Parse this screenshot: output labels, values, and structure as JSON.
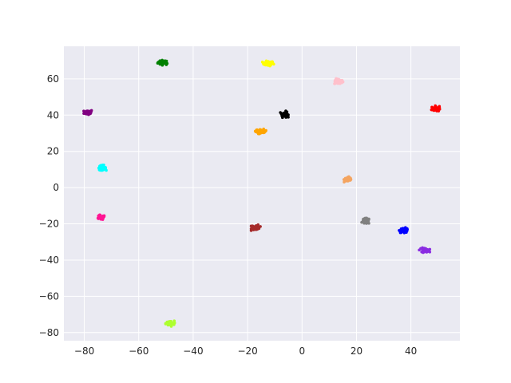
{
  "chart_data": {
    "type": "scatter",
    "title": "",
    "xlabel": "",
    "ylabel": "",
    "xlim": [
      -87.5,
      58
    ],
    "ylim": [
      -84.5,
      78
    ],
    "xticks": [
      -80,
      -60,
      -40,
      -20,
      0,
      20,
      40
    ],
    "yticks": [
      -80,
      -60,
      -40,
      -20,
      0,
      20,
      40,
      60
    ],
    "grid": true,
    "style": "seaborn-darkgrid",
    "background_color": "#eaeaf2",
    "grid_color": "#ffffff",
    "clusters": [
      {
        "color": "#008000",
        "center": [
          -51,
          69
        ],
        "spread": [
          1.8,
          1.2
        ],
        "n": 40
      },
      {
        "color": "#ffff00",
        "center": [
          -12.5,
          68.5
        ],
        "spread": [
          1.8,
          1.2
        ],
        "n": 40
      },
      {
        "color": "#ffc0cb",
        "center": [
          13.5,
          58.5
        ],
        "spread": [
          1.5,
          1.4
        ],
        "n": 40
      },
      {
        "color": "#800080",
        "center": [
          -78.5,
          41.5
        ],
        "spread": [
          1.4,
          1.3
        ],
        "n": 40
      },
      {
        "color": "#000000",
        "center": [
          -6.5,
          40.5
        ],
        "spread": [
          1.2,
          1.5
        ],
        "n": 40
      },
      {
        "color": "#ff0000",
        "center": [
          49,
          43.5
        ],
        "spread": [
          1.3,
          1.4
        ],
        "n": 40
      },
      {
        "color": "#ffa500",
        "center": [
          -15,
          31
        ],
        "spread": [
          1.8,
          1.1
        ],
        "n": 40
      },
      {
        "color": "#00ffff",
        "center": [
          -73.5,
          11
        ],
        "spread": [
          1.3,
          1.2
        ],
        "n": 40
      },
      {
        "color": "#f4a460",
        "center": [
          17,
          4.5
        ],
        "spread": [
          1.4,
          1.4
        ],
        "n": 40
      },
      {
        "color": "#ff1493",
        "center": [
          -74,
          -16.5
        ],
        "spread": [
          1.5,
          1.2
        ],
        "n": 40
      },
      {
        "color": "#808080",
        "center": [
          23.5,
          -18.5
        ],
        "spread": [
          1.3,
          1.4
        ],
        "n": 40
      },
      {
        "color": "#a52a2a",
        "center": [
          -17,
          -22
        ],
        "spread": [
          1.4,
          1.4
        ],
        "n": 40
      },
      {
        "color": "#0000ff",
        "center": [
          37.5,
          -23.5
        ],
        "spread": [
          1.5,
          1.2
        ],
        "n": 40
      },
      {
        "color": "#8a2be2",
        "center": [
          45,
          -34.5
        ],
        "spread": [
          1.6,
          1.1
        ],
        "n": 40
      },
      {
        "color": "#adff2f",
        "center": [
          -48.5,
          -75
        ],
        "spread": [
          1.4,
          1.3
        ],
        "n": 40
      }
    ]
  }
}
